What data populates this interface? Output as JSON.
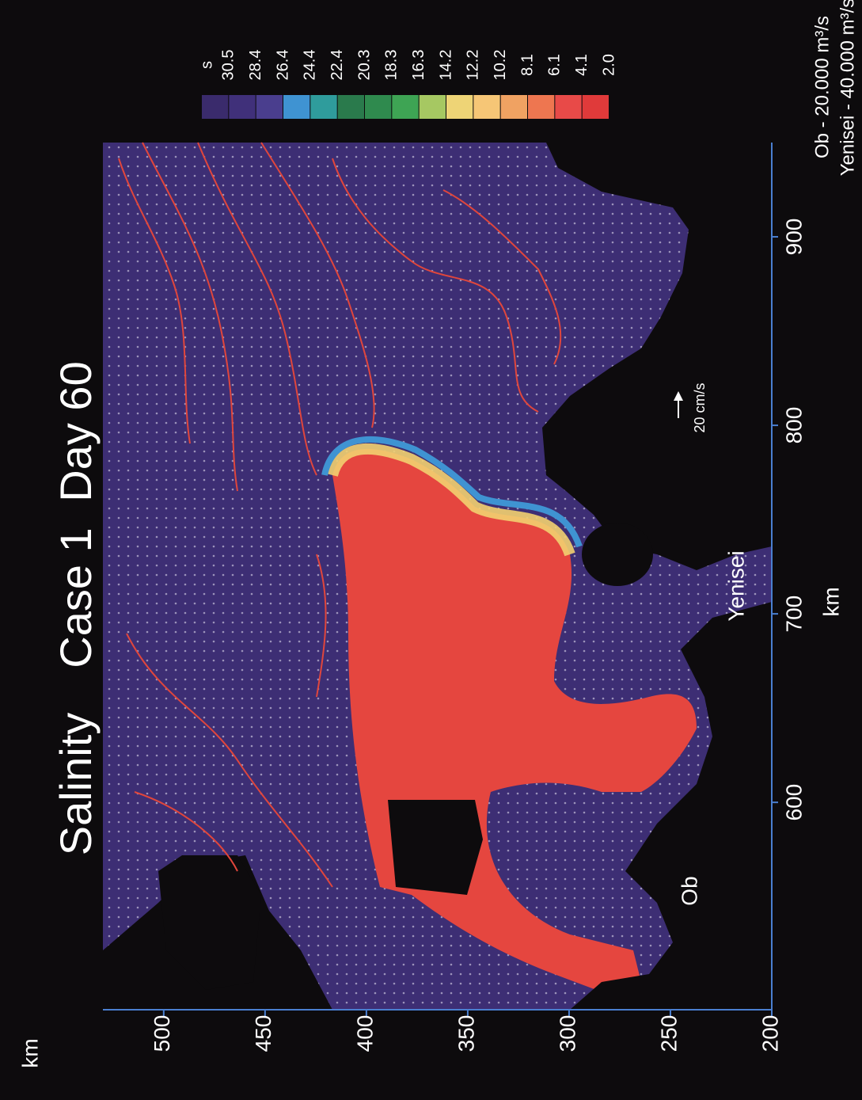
{
  "chart_data": {
    "type": "contour",
    "title": [
      "Salinity",
      "Case 1",
      "Day 60"
    ],
    "annotations": [
      "Ob - 20.000 m³/s",
      "Yenisei - 40.000 m³/s"
    ],
    "x_label": "km",
    "y_label": "km",
    "xlim": [
      200,
      530
    ],
    "xticks": [
      200,
      250,
      300,
      350,
      400,
      450,
      500
    ],
    "ylim": [
      490,
      950
    ],
    "yticks": [
      600,
      700,
      800,
      900
    ],
    "colorbar": {
      "label": "s",
      "levels": [
        30.5,
        28.4,
        26.4,
        24.4,
        22.4,
        20.3,
        18.3,
        16.3,
        14.2,
        12.2,
        10.2,
        8.1,
        6.1,
        4.1,
        {
          "value": 2,
          "label": "2.0"
        }
      ],
      "colors": [
        "#3a2b6c",
        "#40307a",
        "#4a3e8e",
        "#3f93d2",
        "#2f9c9c",
        "#2a7a4c",
        "#2f8a4e",
        "#3ea454",
        "#a6c862",
        "#eed476",
        "#f6c676",
        "#f0a262",
        "#ee7650",
        "#e84a48",
        "#e03a3a"
      ]
    },
    "place_labels": [
      "Ob",
      "Yenisei"
    ],
    "scale_arrow_label": "20 cm/s"
  }
}
